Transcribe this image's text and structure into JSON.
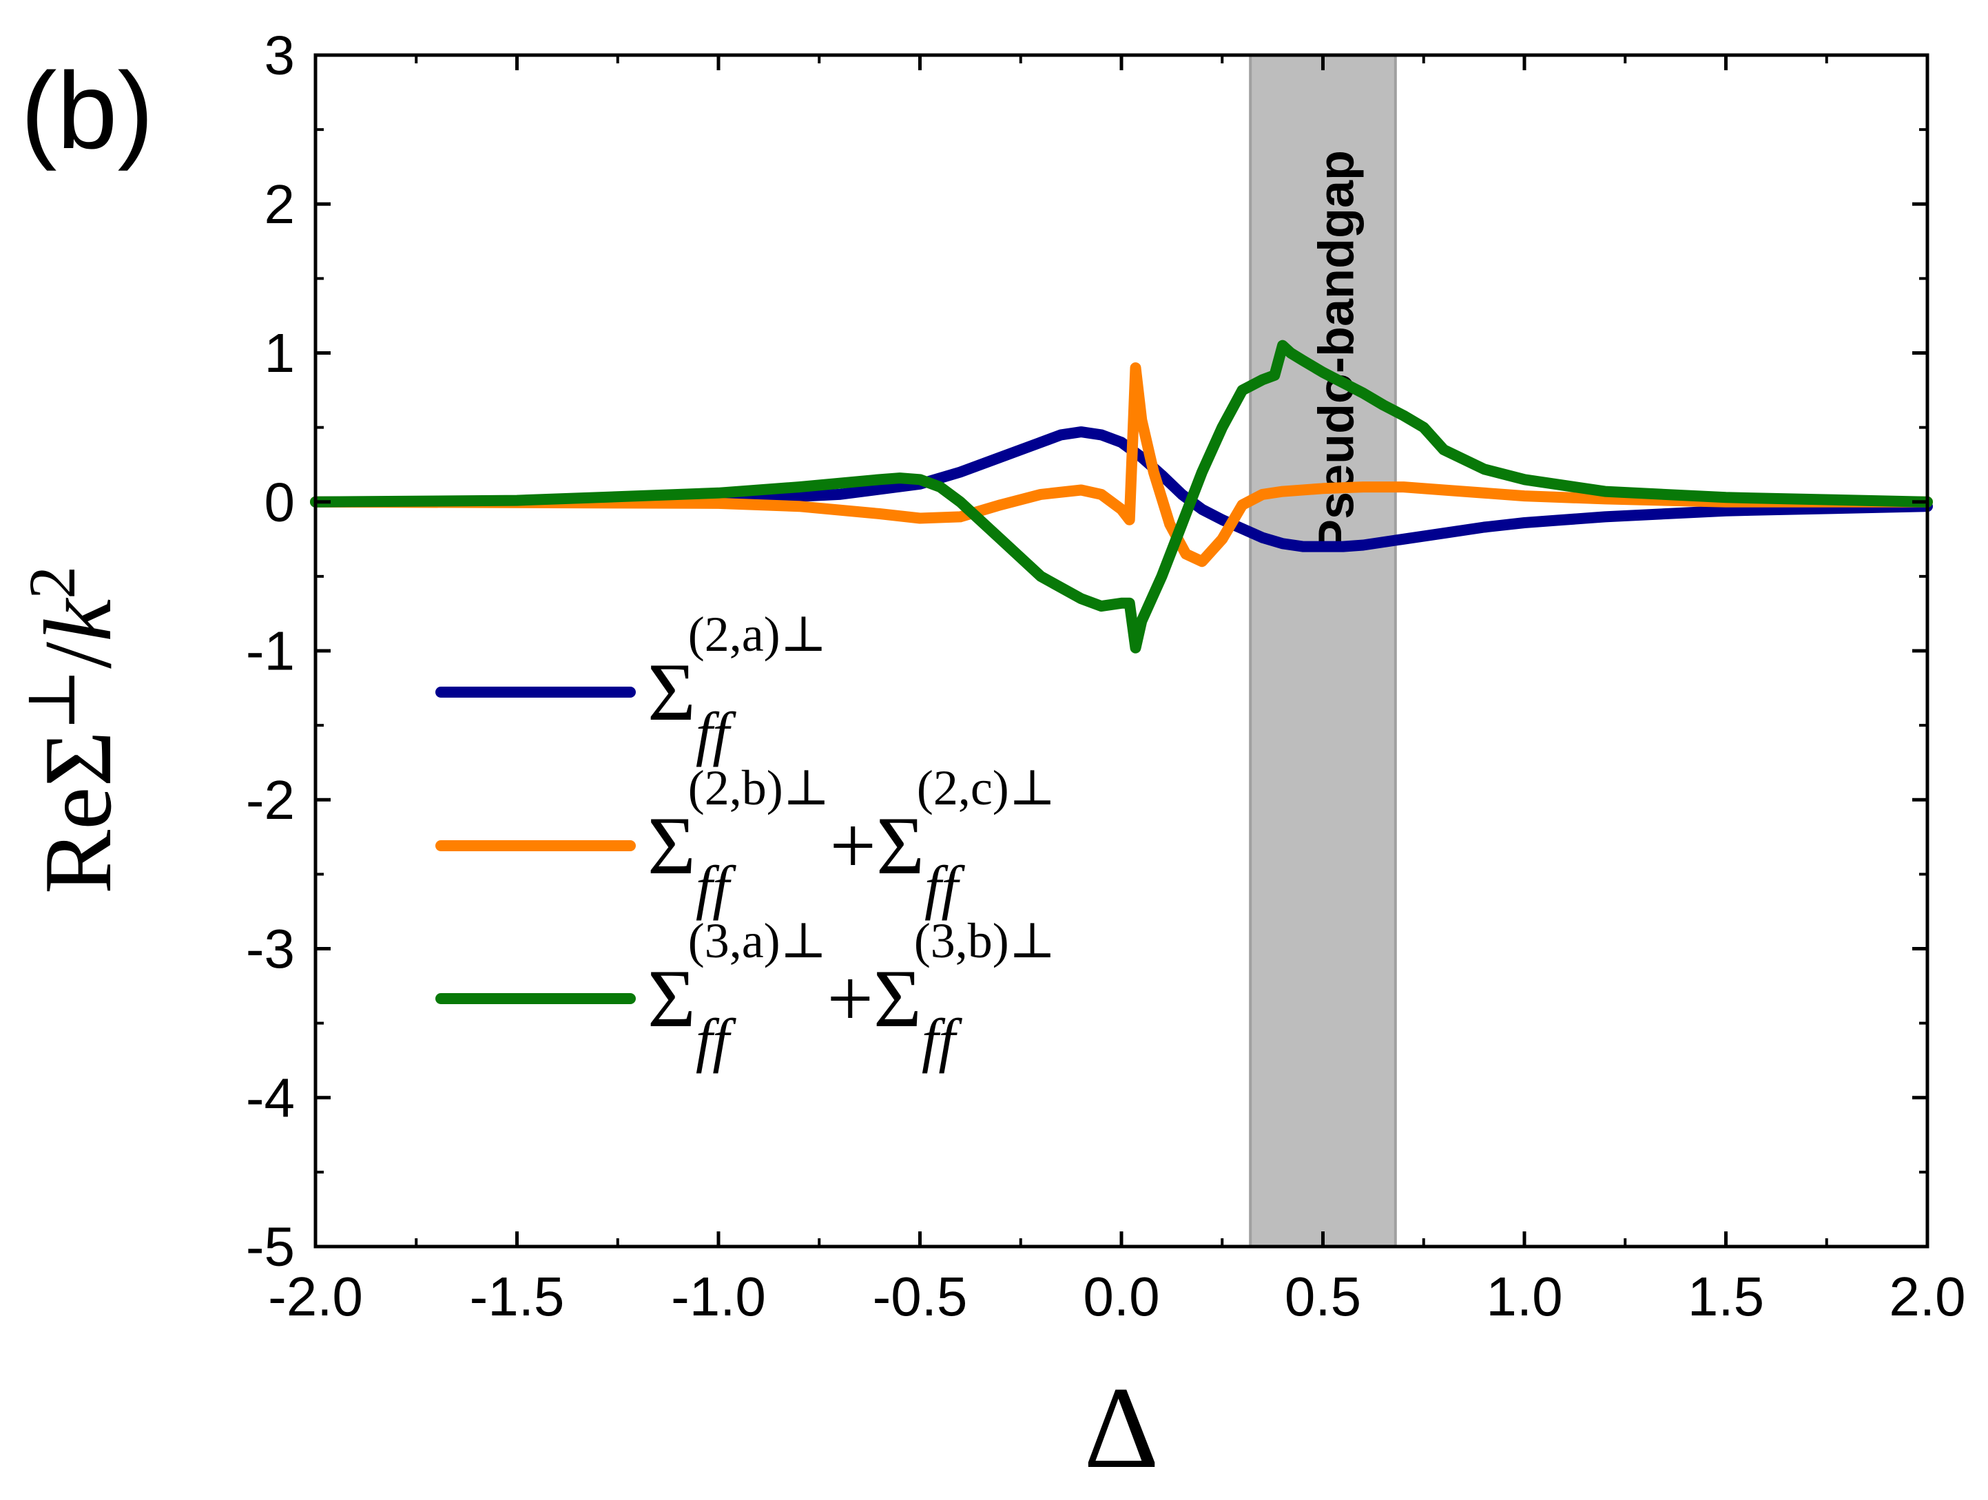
{
  "chart_data": {
    "type": "line",
    "panel_label": "(b)",
    "xlabel": "Δ",
    "ylabel": {
      "prefix": "ReΣ",
      "sup": "⊥",
      "slash": "/",
      "k": "k",
      "ksup": "2"
    },
    "xlim": [
      -2.0,
      2.0
    ],
    "ylim": [
      -5,
      3
    ],
    "x_ticks": [
      -2.0,
      -1.5,
      -1.0,
      -0.5,
      0.0,
      0.5,
      1.0,
      1.5,
      2.0
    ],
    "x_tick_labels": [
      "-2.0",
      "-1.5",
      "-1.0",
      "-0.5",
      "0.0",
      "0.5",
      "1.0",
      "1.5",
      "2.0"
    ],
    "y_ticks": [
      -5,
      -4,
      -3,
      -2,
      -1,
      0,
      1,
      2,
      3
    ],
    "y_tick_labels": [
      "-5",
      "-4",
      "-3",
      "-2",
      "-1",
      "0",
      "1",
      "2",
      "3"
    ],
    "shaded_band": {
      "x_start": 0.32,
      "x_end": 0.68,
      "label": "Pseudo-bandgap",
      "color": "#bdbdbd"
    },
    "legend_position": "center-left",
    "series": [
      {
        "name": "Σff(2,a)⊥",
        "legend": {
          "sym": "Σ",
          "sub": "ff",
          "sup": "(2,a)⊥",
          "sym2": "",
          "sub2": "",
          "sup2": ""
        },
        "color": "#00008f",
        "x": [
          -2.0,
          -1.5,
          -1.0,
          -0.7,
          -0.5,
          -0.4,
          -0.3,
          -0.2,
          -0.15,
          -0.1,
          -0.05,
          0.0,
          0.05,
          0.1,
          0.15,
          0.2,
          0.25,
          0.3,
          0.35,
          0.4,
          0.45,
          0.5,
          0.55,
          0.6,
          0.65,
          0.7,
          0.8,
          0.9,
          1.0,
          1.2,
          1.5,
          2.0
        ],
        "y": [
          0.0,
          0.0,
          0.01,
          0.05,
          0.12,
          0.2,
          0.3,
          0.4,
          0.45,
          0.47,
          0.45,
          0.4,
          0.3,
          0.18,
          0.05,
          -0.05,
          -0.12,
          -0.18,
          -0.24,
          -0.28,
          -0.3,
          -0.3,
          -0.3,
          -0.29,
          -0.27,
          -0.25,
          -0.21,
          -0.17,
          -0.14,
          -0.1,
          -0.06,
          -0.03
        ]
      },
      {
        "name": "Σff(2,b)⊥+Σff(2,c)⊥",
        "legend": {
          "sym": "Σ",
          "sub": "ff",
          "sup": "(2,b)⊥",
          "sym2": "+Σ",
          "sub2": "ff",
          "sup2": "(2,c)⊥"
        },
        "color": "#ff8000",
        "x": [
          -2.0,
          -1.0,
          -0.8,
          -0.6,
          -0.5,
          -0.4,
          -0.3,
          -0.2,
          -0.1,
          -0.05,
          0.0,
          0.02,
          0.035,
          0.05,
          0.08,
          0.12,
          0.16,
          0.2,
          0.25,
          0.3,
          0.35,
          0.4,
          0.5,
          0.6,
          0.7,
          0.8,
          1.0,
          1.2,
          1.5,
          2.0
        ],
        "y": [
          0.0,
          -0.01,
          -0.03,
          -0.08,
          -0.11,
          -0.1,
          -0.02,
          0.05,
          0.08,
          0.05,
          -0.05,
          -0.12,
          0.9,
          0.55,
          0.2,
          -0.15,
          -0.35,
          -0.4,
          -0.25,
          -0.02,
          0.05,
          0.07,
          0.09,
          0.1,
          0.1,
          0.08,
          0.04,
          0.02,
          0.0,
          0.0
        ]
      },
      {
        "name": "Σff(3,a)⊥+Σff(3,b)⊥",
        "legend": {
          "sym": "Σ",
          "sub": "ff",
          "sup": "(3,a)⊥",
          "sym2": "+Σ",
          "sub2": "ff",
          "sup2": "(3,b)⊥"
        },
        "color": "#087908",
        "x": [
          -2.0,
          -1.5,
          -1.0,
          -0.8,
          -0.6,
          -0.55,
          -0.5,
          -0.45,
          -0.4,
          -0.3,
          -0.2,
          -0.1,
          -0.05,
          0.0,
          0.02,
          0.035,
          0.05,
          0.1,
          0.15,
          0.2,
          0.25,
          0.3,
          0.35,
          0.38,
          0.4,
          0.42,
          0.45,
          0.5,
          0.55,
          0.6,
          0.65,
          0.7,
          0.75,
          0.8,
          0.9,
          1.0,
          1.2,
          1.5,
          2.0
        ],
        "y": [
          0.0,
          0.01,
          0.06,
          0.1,
          0.15,
          0.16,
          0.15,
          0.1,
          0.0,
          -0.25,
          -0.5,
          -0.65,
          -0.7,
          -0.68,
          -0.68,
          -0.98,
          -0.8,
          -0.5,
          -0.15,
          0.2,
          0.5,
          0.75,
          0.82,
          0.85,
          1.05,
          1.0,
          0.95,
          0.87,
          0.8,
          0.73,
          0.65,
          0.58,
          0.5,
          0.35,
          0.22,
          0.15,
          0.07,
          0.03,
          0.0
        ]
      }
    ]
  }
}
